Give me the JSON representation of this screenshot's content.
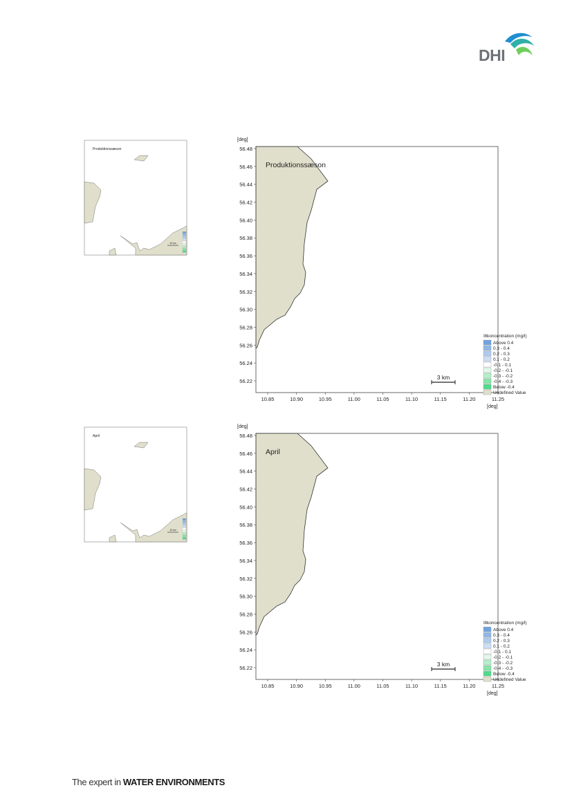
{
  "brand": {
    "logo_text": "DHI"
  },
  "footer": {
    "prefix": "The expert in ",
    "strong": "WATER ENVIRONMENTS"
  },
  "colors": {
    "land": "#e0dfcc",
    "coast": "#333333",
    "frame": "#444444"
  },
  "legend": {
    "title": "Iltkoncentration (mg/l)",
    "items": [
      {
        "label": "Above  0.4",
        "color": "#6fa3e0"
      },
      {
        "label": "0.3 -  0.4",
        "color": "#8fb8e8"
      },
      {
        "label": "0.2 -  0.3",
        "color": "#aecbef"
      },
      {
        "label": "0.1 -  0.2",
        "color": "#cddff5"
      },
      {
        "label": "-0.1 -  0.1",
        "color": "#ffffff"
      },
      {
        "label": "-0.2 - -0.1",
        "color": "#e3f7ea"
      },
      {
        "label": "-0.3 - -0.2",
        "color": "#b4efc9"
      },
      {
        "label": "-0.4 - -0.3",
        "color": "#85e6a8"
      },
      {
        "label": "Below -0.4",
        "color": "#4fdc8a"
      },
      {
        "label": "Undefined Value",
        "color": "#e0dfcc"
      }
    ]
  },
  "maps": [
    {
      "label": "Produktionssæson",
      "axis_unit": "[deg]",
      "y_ticks": [
        "56.48",
        "56.46",
        "56.44",
        "56.42",
        "56.40",
        "56.38",
        "56.36",
        "56.34",
        "56.32",
        "56.30",
        "56.28",
        "56.26",
        "56.24",
        "56.22"
      ],
      "x_ticks": [
        "10.85",
        "10.90",
        "10.95",
        "11.00",
        "11.05",
        "11.10",
        "11.15",
        "11.20",
        "11.25"
      ],
      "scale_bar": "3 km"
    },
    {
      "label": "April",
      "axis_unit": "[deg]",
      "y_ticks": [
        "56.48",
        "56.46",
        "56.44",
        "56.42",
        "56.40",
        "56.38",
        "56.36",
        "56.34",
        "56.32",
        "56.30",
        "56.28",
        "56.26",
        "56.24",
        "56.22"
      ],
      "x_ticks": [
        "10.85",
        "10.90",
        "10.95",
        "11.00",
        "11.05",
        "11.10",
        "11.15",
        "11.20",
        "11.25"
      ],
      "scale_bar": "3 km"
    }
  ],
  "overviews": [
    {
      "label": "Produktionssæson",
      "scale_bar": "10 km"
    },
    {
      "label": "April",
      "scale_bar": "10 km"
    }
  ]
}
